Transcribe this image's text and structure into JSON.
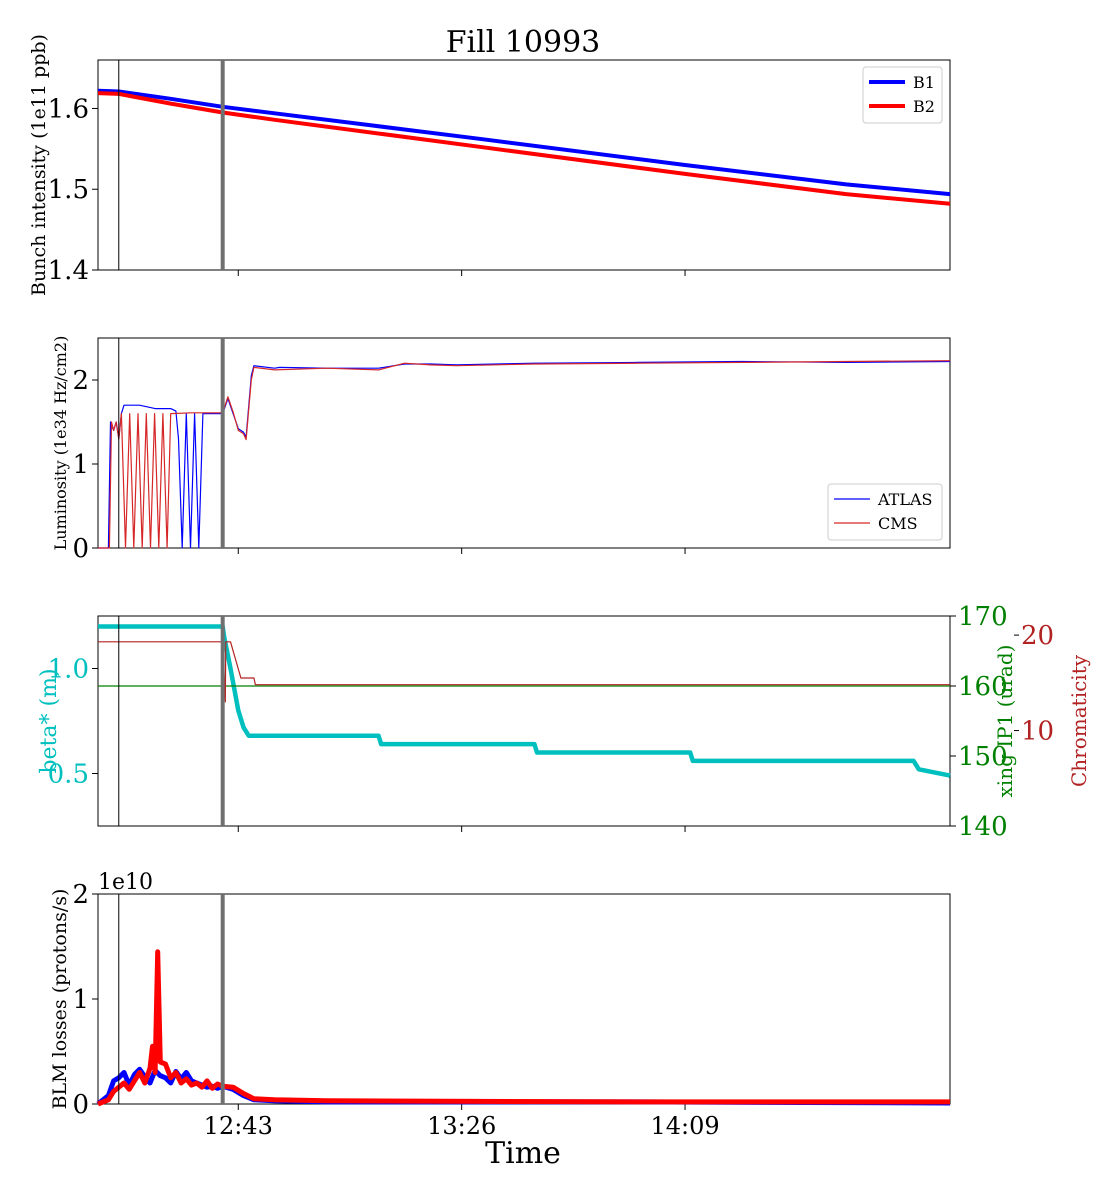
{
  "title": "Fill 10993",
  "xlabel": "Time",
  "xticks": [
    "12:43",
    "13:26",
    "14:09"
  ],
  "colors": {
    "b1": "#0000ff",
    "b2": "#ff0000",
    "atlas": "#0000ff",
    "cms": "#d62728",
    "beta": "#00bfbf",
    "xing": "#008000",
    "chroma": "#b22222",
    "marker": "#707070"
  },
  "markers": {
    "thin_line_time": "12:20",
    "thick_line_time": "12:40"
  },
  "chart_data": [
    {
      "type": "line",
      "name": "bunch-intensity",
      "ylabel": "Bunch intensity (1e11 ppb)",
      "ylim": [
        1.4,
        1.66
      ],
      "yticks": [
        "1.4",
        "1.5",
        "1.6"
      ],
      "legend": "top-right",
      "series": [
        {
          "name": "B1",
          "points": [
            [
              "12:16",
              1.622
            ],
            [
              "12:20",
              1.621
            ],
            [
              "12:30",
              1.612
            ],
            [
              "12:40",
              1.602
            ],
            [
              "12:50",
              1.594
            ],
            [
              "13:30",
              1.562
            ],
            [
              "14:09",
              1.53
            ],
            [
              "14:40",
              1.506
            ],
            [
              "15:00",
              1.494
            ]
          ]
        },
        {
          "name": "B2",
          "points": [
            [
              "12:16",
              1.619
            ],
            [
              "12:20",
              1.618
            ],
            [
              "12:30",
              1.606
            ],
            [
              "12:40",
              1.595
            ],
            [
              "12:50",
              1.586
            ],
            [
              "13:30",
              1.552
            ],
            [
              "14:09",
              1.519
            ],
            [
              "14:40",
              1.494
            ],
            [
              "15:00",
              1.482
            ]
          ]
        }
      ]
    },
    {
      "type": "line",
      "name": "luminosity",
      "ylabel": "Luminosity (1e34 Hz/cm2)",
      "ylim": [
        0,
        2.5
      ],
      "yticks": [
        "0",
        "1",
        "2"
      ],
      "legend": "bottom-right",
      "series": [
        {
          "name": "ATLAS",
          "points": [
            [
              "12:16",
              0
            ],
            [
              "12:18",
              0
            ],
            [
              "12:18.4",
              1.5
            ],
            [
              "12:19",
              1.4
            ],
            [
              "12:19.5",
              1.5
            ],
            [
              "12:20",
              1.3
            ],
            [
              "12:20.5",
              1.6
            ],
            [
              "12:21",
              1.7
            ],
            [
              "12:24",
              1.7
            ],
            [
              "12:27",
              1.66
            ],
            [
              "12:30",
              1.66
            ],
            [
              "12:31",
              1.63
            ],
            [
              "12:31.5",
              1.3
            ],
            [
              "12:32.2",
              0
            ],
            [
              "12:33",
              1.6
            ],
            [
              "12:33.8",
              0
            ],
            [
              "12:34.6",
              1.6
            ],
            [
              "12:35.4",
              0
            ],
            [
              "12:36.2",
              1.6
            ],
            [
              "12:37",
              1.6
            ],
            [
              "12:40",
              1.6
            ],
            [
              "12:41",
              1.78
            ],
            [
              "12:42",
              1.6
            ],
            [
              "12:43",
              1.42
            ],
            [
              "12:44",
              1.38
            ],
            [
              "12:44.5",
              1.32
            ],
            [
              "12:45.5",
              2.05
            ],
            [
              "12:46",
              2.17
            ],
            [
              "12:50",
              2.14
            ],
            [
              "12:51",
              2.15
            ],
            [
              "13:00",
              2.14
            ],
            [
              "13:10",
              2.14
            ],
            [
              "13:15",
              2.19
            ],
            [
              "13:20",
              2.19
            ],
            [
              "13:25",
              2.18
            ],
            [
              "13:40",
              2.2
            ],
            [
              "14:00",
              2.21
            ],
            [
              "14:20",
              2.22
            ],
            [
              "14:40",
              2.21
            ],
            [
              "15:00",
              2.22
            ]
          ]
        },
        {
          "name": "CMS",
          "points": [
            [
              "12:16",
              0
            ],
            [
              "12:18.2",
              0
            ],
            [
              "12:18.6",
              1.5
            ],
            [
              "12:19",
              1.4
            ],
            [
              "12:19.5",
              1.5
            ],
            [
              "12:20",
              1.3
            ],
            [
              "12:20.5",
              1.6
            ],
            [
              "12:21.3",
              0
            ],
            [
              "12:22.1",
              1.6
            ],
            [
              "12:22.9",
              0
            ],
            [
              "12:23.7",
              1.6
            ],
            [
              "12:24.5",
              0
            ],
            [
              "12:25.3",
              1.6
            ],
            [
              "12:26.1",
              0
            ],
            [
              "12:26.9",
              1.6
            ],
            [
              "12:27.7",
              0
            ],
            [
              "12:28.5",
              1.6
            ],
            [
              "12:29.3",
              0
            ],
            [
              "12:30",
              1.6
            ],
            [
              "12:34",
              1.61
            ],
            [
              "12:38",
              1.61
            ],
            [
              "12:40",
              1.61
            ],
            [
              "12:41",
              1.8
            ],
            [
              "12:42",
              1.62
            ],
            [
              "12:43",
              1.4
            ],
            [
              "12:44",
              1.36
            ],
            [
              "12:44.5",
              1.29
            ],
            [
              "12:45.5",
              2.0
            ],
            [
              "12:46",
              2.15
            ],
            [
              "12:50",
              2.12
            ],
            [
              "13:00",
              2.14
            ],
            [
              "13:10",
              2.12
            ],
            [
              "13:15",
              2.2
            ],
            [
              "13:20",
              2.18
            ],
            [
              "13:25",
              2.17
            ],
            [
              "13:40",
              2.19
            ],
            [
              "14:00",
              2.2
            ],
            [
              "14:20",
              2.21
            ],
            [
              "14:40",
              2.22
            ],
            [
              "15:00",
              2.23
            ]
          ]
        }
      ]
    },
    {
      "type": "line",
      "name": "optics",
      "ylabel": "beta* (m)",
      "ylabel_right1": "xing IP1 (urad)",
      "ylabel_right2": "Chromaticity",
      "ylim": [
        0.25,
        1.25
      ],
      "yticks": [
        "0.5",
        "1.0"
      ],
      "y2lim": [
        140,
        170
      ],
      "y2ticks": [
        "140",
        "150",
        "160",
        "170"
      ],
      "y3lim": [
        0,
        22
      ],
      "y3ticks": [
        "10",
        "20"
      ],
      "series": [
        {
          "name": "beta",
          "axis": "left",
          "points": [
            [
              "12:16",
              1.2
            ],
            [
              "12:40",
              1.2
            ],
            [
              "12:40.3",
              1.15
            ],
            [
              "12:41.5",
              1.0
            ],
            [
              "12:43",
              0.8
            ],
            [
              "12:44",
              0.72
            ],
            [
              "12:45",
              0.68
            ],
            [
              "13:10",
              0.68
            ],
            [
              "13:10.5",
              0.64
            ],
            [
              "13:40",
              0.64
            ],
            [
              "13:40.5",
              0.6
            ],
            [
              "14:10",
              0.6
            ],
            [
              "14:10.5",
              0.56
            ],
            [
              "14:53",
              0.56
            ],
            [
              "14:54",
              0.52
            ],
            [
              "15:00",
              0.49
            ]
          ]
        },
        {
          "name": "xing",
          "axis": "right1",
          "points": [
            [
              "12:16",
              160
            ],
            [
              "15:00",
              160
            ]
          ]
        },
        {
          "name": "chroma",
          "axis": "right2",
          "points": [
            [
              "12:16",
              19.3
            ],
            [
              "12:40",
              19.3
            ],
            [
              "12:40.5",
              13.0
            ],
            [
              "12:40.6",
              19.3
            ],
            [
              "12:41.5",
              19.3
            ],
            [
              "12:43.5",
              15.5
            ],
            [
              "12:46",
              15.5
            ],
            [
              "12:46.3",
              14.8
            ],
            [
              "15:00",
              14.8
            ]
          ]
        }
      ]
    },
    {
      "type": "line",
      "name": "blm-losses",
      "ylabel": "BLM losses (protons/s)",
      "yscale_label": "1e10",
      "ylim": [
        0,
        2
      ],
      "yticks": [
        "0",
        "1",
        "2"
      ],
      "series": [
        {
          "name": "B1",
          "points": [
            [
              "12:16",
              0
            ],
            [
              "12:18",
              0.08
            ],
            [
              "12:19",
              0.22
            ],
            [
              "12:20",
              0.25
            ],
            [
              "12:21",
              0.3
            ],
            [
              "12:22",
              0.18
            ],
            [
              "12:23",
              0.28
            ],
            [
              "12:24",
              0.33
            ],
            [
              "12:25",
              0.26
            ],
            [
              "12:26",
              0.2
            ],
            [
              "12:27",
              0.32
            ],
            [
              "12:28",
              0.27
            ],
            [
              "12:29",
              0.25
            ],
            [
              "12:30",
              0.2
            ],
            [
              "12:31",
              0.31
            ],
            [
              "12:32",
              0.24
            ],
            [
              "12:33",
              0.3
            ],
            [
              "12:34",
              0.22
            ],
            [
              "12:35",
              0.2
            ],
            [
              "12:36",
              0.18
            ],
            [
              "12:37",
              0.16
            ],
            [
              "12:38",
              0.17
            ],
            [
              "12:39",
              0.15
            ],
            [
              "12:40",
              0.17
            ],
            [
              "12:42",
              0.14
            ],
            [
              "12:44",
              0.08
            ],
            [
              "12:46",
              0.04
            ],
            [
              "12:50",
              0.03
            ],
            [
              "13:00",
              0.02
            ],
            [
              "14:00",
              0.02
            ],
            [
              "15:00",
              0.01
            ]
          ]
        },
        {
          "name": "B2",
          "points": [
            [
              "12:16",
              0
            ],
            [
              "12:18",
              0.04
            ],
            [
              "12:19",
              0.12
            ],
            [
              "12:20",
              0.16
            ],
            [
              "12:21",
              0.2
            ],
            [
              "12:22",
              0.14
            ],
            [
              "12:23",
              0.22
            ],
            [
              "12:24",
              0.3
            ],
            [
              "12:25",
              0.2
            ],
            [
              "12:26",
              0.34
            ],
            [
              "12:26.5",
              0.55
            ],
            [
              "12:27",
              0.3
            ],
            [
              "12:27.5",
              1.45
            ],
            [
              "12:28",
              0.4
            ],
            [
              "12:29",
              0.38
            ],
            [
              "12:30",
              0.25
            ],
            [
              "12:31",
              0.3
            ],
            [
              "12:32",
              0.2
            ],
            [
              "12:33",
              0.24
            ],
            [
              "12:34",
              0.18
            ],
            [
              "12:35",
              0.2
            ],
            [
              "12:36",
              0.16
            ],
            [
              "12:37",
              0.22
            ],
            [
              "12:38",
              0.15
            ],
            [
              "12:39",
              0.19
            ],
            [
              "12:40",
              0.17
            ],
            [
              "12:42",
              0.16
            ],
            [
              "12:44",
              0.1
            ],
            [
              "12:46",
              0.05
            ],
            [
              "12:50",
              0.04
            ],
            [
              "13:00",
              0.03
            ],
            [
              "14:00",
              0.02
            ],
            [
              "15:00",
              0.02
            ]
          ]
        }
      ]
    }
  ]
}
